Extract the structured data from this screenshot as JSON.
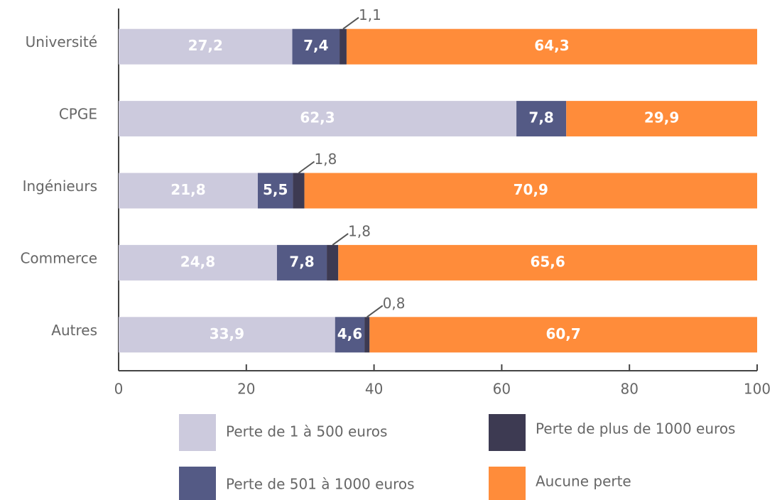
{
  "chart_data": {
    "type": "stacked-bar-horizontal",
    "categories": [
      "Université",
      "CPGE",
      "Ingénieurs",
      "Commerce",
      "Autres"
    ],
    "series": [
      {
        "name": "Perte de 1 à 500 euros",
        "color": "#cccadd",
        "values": [
          27.2,
          62.3,
          21.8,
          24.8,
          33.9
        ],
        "value_labels": [
          "27,2",
          "62,3",
          "21,8",
          "24,8",
          "33,9"
        ]
      },
      {
        "name": "Perte de 501 à 1000 euros",
        "color": "#545a85",
        "values": [
          7.4,
          7.8,
          5.5,
          7.8,
          4.6
        ],
        "value_labels": [
          "7,4",
          "7,8",
          "5,5",
          "7,8",
          "4,6"
        ]
      },
      {
        "name": "Perte de plus de 1000 euros",
        "color": "#3d3a52",
        "values": [
          1.1,
          null,
          1.8,
          1.8,
          0.8
        ],
        "value_labels": [
          "1,1",
          null,
          "1,8",
          "1,8",
          "0,8"
        ]
      },
      {
        "name": "Aucune perte",
        "color": "#ff8c3a",
        "values": [
          64.3,
          29.9,
          70.9,
          65.6,
          60.7
        ],
        "value_labels": [
          "64,3",
          "29,9",
          "70,9",
          "65,6",
          "60,7"
        ]
      }
    ],
    "xlim": [
      0,
      100
    ],
    "xticks": [
      0,
      20,
      40,
      60,
      80,
      100
    ]
  }
}
